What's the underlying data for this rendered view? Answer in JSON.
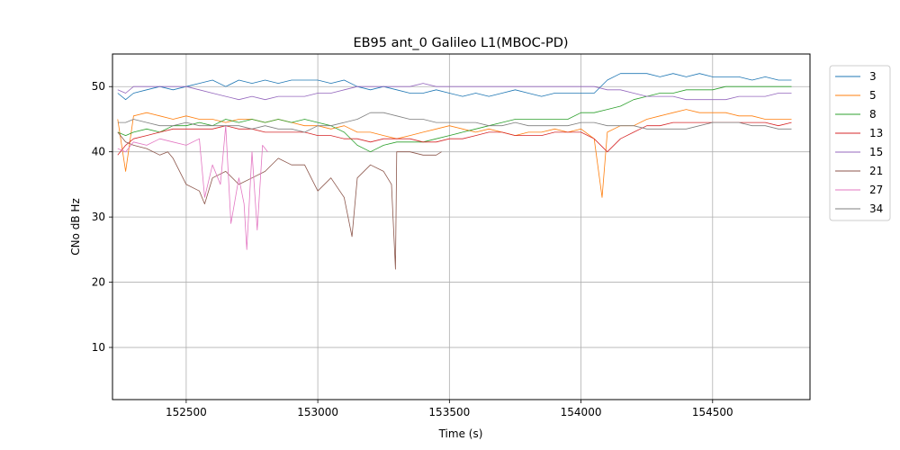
{
  "chart_data": {
    "type": "line",
    "title": "EB95 ant_0 Galileo L1(MBOC-PD)",
    "xlabel": "Time (s)",
    "ylabel": "CNo dB Hz",
    "xlim": [
      152220,
      154870
    ],
    "ylim": [
      2,
      55
    ],
    "xticks": [
      152500,
      153000,
      153500,
      154000,
      154500
    ],
    "yticks": [
      10,
      20,
      30,
      40,
      50
    ],
    "grid": true,
    "legend_position": "outside-right-top",
    "series": [
      {
        "name": "3",
        "color": "#1f77b4",
        "x": [
          152240,
          152270,
          152300,
          152350,
          152400,
          152450,
          152500,
          152550,
          152600,
          152650,
          152700,
          152750,
          152800,
          152850,
          152900,
          152950,
          153000,
          153050,
          153100,
          153150,
          153200,
          153250,
          153300,
          153350,
          153400,
          153450,
          153500,
          153550,
          153600,
          153650,
          153700,
          153750,
          153800,
          153850,
          153900,
          153950,
          154000,
          154050,
          154100,
          154150,
          154200,
          154250,
          154300,
          154350,
          154400,
          154450,
          154500,
          154550,
          154600,
          154650,
          154700,
          154750,
          154800
        ],
        "y": [
          49,
          48,
          49,
          49.5,
          50,
          49.5,
          50,
          50.5,
          51,
          50,
          51,
          50.5,
          51,
          50.5,
          51,
          51,
          51,
          50.5,
          51,
          50,
          49.5,
          50,
          49.5,
          49,
          49,
          49.5,
          49,
          48.5,
          49,
          48.5,
          49,
          49.5,
          49,
          48.5,
          49,
          49,
          49,
          49,
          51,
          52,
          52,
          52,
          51.5,
          52,
          51.5,
          52,
          51.5,
          51.5,
          51.5,
          51,
          51.5,
          51,
          51
        ]
      },
      {
        "name": "5",
        "color": "#ff7f0e",
        "x": [
          152240,
          152270,
          152300,
          152350,
          152400,
          152450,
          152500,
          152550,
          152600,
          152650,
          152700,
          152750,
          152800,
          152850,
          152900,
          152950,
          153000,
          153050,
          153100,
          153150,
          153200,
          153250,
          153300,
          153350,
          153400,
          153450,
          153500,
          153550,
          153600,
          153650,
          153700,
          153750,
          153800,
          153850,
          153900,
          153950,
          154000,
          154050,
          154080,
          154100,
          154150,
          154200,
          154250,
          154300,
          154350,
          154400,
          154450,
          154500,
          154550,
          154600,
          154650,
          154700,
          154750,
          154800
        ],
        "y": [
          45,
          37,
          45.5,
          46,
          45.5,
          45,
          45.5,
          45,
          45,
          44.5,
          45,
          45,
          44.5,
          45,
          44.5,
          44,
          44,
          43.5,
          44,
          43,
          43,
          42.5,
          42,
          42.5,
          43,
          43.5,
          44,
          43.5,
          43,
          43.5,
          43,
          42.5,
          43,
          43,
          43.5,
          43,
          43.5,
          42,
          33,
          43,
          44,
          44,
          45,
          45.5,
          46,
          46.5,
          46,
          46,
          46,
          45.5,
          45.5,
          45,
          45,
          45
        ]
      },
      {
        "name": "8",
        "color": "#2ca02c",
        "x": [
          152240,
          152270,
          152300,
          152350,
          152400,
          152450,
          152500,
          152550,
          152600,
          152650,
          152700,
          152750,
          152800,
          152850,
          152900,
          152950,
          153000,
          153050,
          153100,
          153150,
          153200,
          153250,
          153300,
          153350,
          153400,
          153450,
          153500,
          153550,
          153600,
          153650,
          153700,
          153750,
          153800,
          153850,
          153900,
          153950,
          154000,
          154050,
          154100,
          154150,
          154200,
          154250,
          154300,
          154350,
          154400,
          154450,
          154500,
          154550,
          154600,
          154650,
          154700,
          154750,
          154800
        ],
        "y": [
          43,
          42.5,
          43,
          43.5,
          43,
          44,
          44,
          44.5,
          44,
          45,
          44.5,
          45,
          44.5,
          45,
          44.5,
          45,
          44.5,
          44,
          43,
          41,
          40,
          41,
          41.5,
          41.5,
          41.5,
          42,
          42.5,
          43,
          43.5,
          44,
          44.5,
          45,
          45,
          45,
          45,
          45,
          46,
          46,
          46.5,
          47,
          48,
          48.5,
          49,
          49,
          49.5,
          49.5,
          49.5,
          50,
          50,
          50,
          50,
          50,
          50
        ]
      },
      {
        "name": "13",
        "color": "#d62728",
        "x": [
          152240,
          152270,
          152300,
          152350,
          152400,
          152450,
          152500,
          152550,
          152600,
          152650,
          152700,
          152750,
          152800,
          152850,
          152900,
          152950,
          153000,
          153050,
          153100,
          153150,
          153200,
          153250,
          153300,
          153350,
          153400,
          153450,
          153500,
          153550,
          153600,
          153650,
          153700,
          153750,
          153800,
          153850,
          153900,
          153950,
          154000,
          154050,
          154100,
          154150,
          154200,
          154250,
          154300,
          154350,
          154400,
          154450,
          154500,
          154550,
          154600,
          154650,
          154700,
          154750,
          154800
        ],
        "y": [
          39.5,
          41,
          42,
          42.5,
          43,
          43.5,
          43.5,
          43.5,
          43.5,
          44,
          43.5,
          43.5,
          43,
          43,
          43,
          43,
          42.5,
          42.5,
          42,
          42,
          41.5,
          42,
          42,
          42,
          41.5,
          41.5,
          42,
          42,
          42.5,
          43,
          43,
          42.5,
          42.5,
          42.5,
          43,
          43,
          43,
          42,
          40,
          42,
          43,
          44,
          44,
          44.5,
          44.5,
          44.5,
          44.5,
          44.5,
          44.5,
          44.5,
          44.5,
          44,
          44.5
        ]
      },
      {
        "name": "15",
        "color": "#9467bd",
        "x": [
          152240,
          152270,
          152300,
          152350,
          152400,
          152450,
          152500,
          152550,
          152600,
          152650,
          152700,
          152750,
          152800,
          152850,
          152900,
          152950,
          153000,
          153050,
          153100,
          153150,
          153200,
          153250,
          153300,
          153350,
          153400,
          153450,
          153500,
          153550,
          153600,
          153650,
          153700,
          153750,
          153800,
          153850,
          153900,
          153950,
          154000,
          154050,
          154100,
          154150,
          154200,
          154250,
          154300,
          154350,
          154400,
          154450,
          154500,
          154550,
          154600,
          154650,
          154700,
          154750,
          154800
        ],
        "y": [
          49.5,
          49,
          50,
          50,
          50,
          50,
          50,
          49.5,
          49,
          48.5,
          48,
          48.5,
          48,
          48.5,
          48.5,
          48.5,
          49,
          49,
          49.5,
          50,
          50,
          50,
          50,
          50,
          50.5,
          50,
          50,
          50,
          50,
          50,
          50,
          50,
          50,
          50,
          50,
          50,
          50,
          50,
          49.5,
          49.5,
          49,
          48.5,
          48.5,
          48.5,
          48,
          48,
          48,
          48,
          48.5,
          48.5,
          48.5,
          49,
          49
        ]
      },
      {
        "name": "21",
        "color": "#8c564b",
        "x": [
          152240,
          152270,
          152300,
          152350,
          152400,
          152430,
          152450,
          152500,
          152550,
          152570,
          152600,
          152650,
          152700,
          152750,
          152800,
          152850,
          152900,
          152950,
          153000,
          153050,
          153100,
          153130,
          153150,
          153200,
          153250,
          153280,
          153295,
          153300,
          153350,
          153400,
          153450,
          153470
        ],
        "y": [
          43,
          41.5,
          41,
          40.5,
          39.5,
          40,
          39,
          35,
          34,
          32,
          36,
          37,
          35,
          36,
          37,
          39,
          38,
          38,
          34,
          36,
          33,
          27,
          36,
          38,
          37,
          35,
          22,
          40,
          40,
          39.5,
          39.5,
          40
        ]
      },
      {
        "name": "27",
        "color": "#e377c2",
        "x": [
          152240,
          152270,
          152300,
          152350,
          152400,
          152450,
          152500,
          152550,
          152570,
          152600,
          152630,
          152650,
          152670,
          152700,
          152720,
          152730,
          152750,
          152770,
          152790,
          152810
        ],
        "y": [
          40.5,
          40,
          41.5,
          41,
          42,
          41.5,
          41,
          42,
          33,
          38,
          35,
          44,
          29,
          36,
          32,
          25,
          40,
          28,
          41,
          40
        ]
      },
      {
        "name": "34",
        "color": "#7f7f7f",
        "x": [
          152240,
          152270,
          152300,
          152350,
          152400,
          152450,
          152500,
          152550,
          152600,
          152650,
          152700,
          152750,
          152800,
          152850,
          152900,
          152950,
          153000,
          153050,
          153100,
          153150,
          153200,
          153250,
          153300,
          153350,
          153400,
          153450,
          153500,
          153550,
          153600,
          153650,
          153700,
          153750,
          153800,
          153850,
          153900,
          153950,
          154000,
          154050,
          154100,
          154150,
          154200,
          154250,
          154300,
          154350,
          154400,
          154450,
          154500,
          154550,
          154600,
          154650,
          154700,
          154750,
          154800
        ],
        "y": [
          44.5,
          44.5,
          45,
          44.5,
          44,
          44,
          44.5,
          44,
          44,
          44,
          44,
          43.5,
          44,
          43.5,
          43.5,
          43,
          44,
          44,
          44.5,
          45,
          46,
          46,
          45.5,
          45,
          45,
          44.5,
          44.5,
          44.5,
          44.5,
          44,
          44,
          44.5,
          44,
          44,
          44,
          44,
          44.5,
          44.5,
          44,
          44,
          44,
          43.5,
          43.5,
          43.5,
          43.5,
          44,
          44.5,
          44.5,
          44.5,
          44,
          44,
          43.5,
          43.5
        ]
      }
    ]
  }
}
